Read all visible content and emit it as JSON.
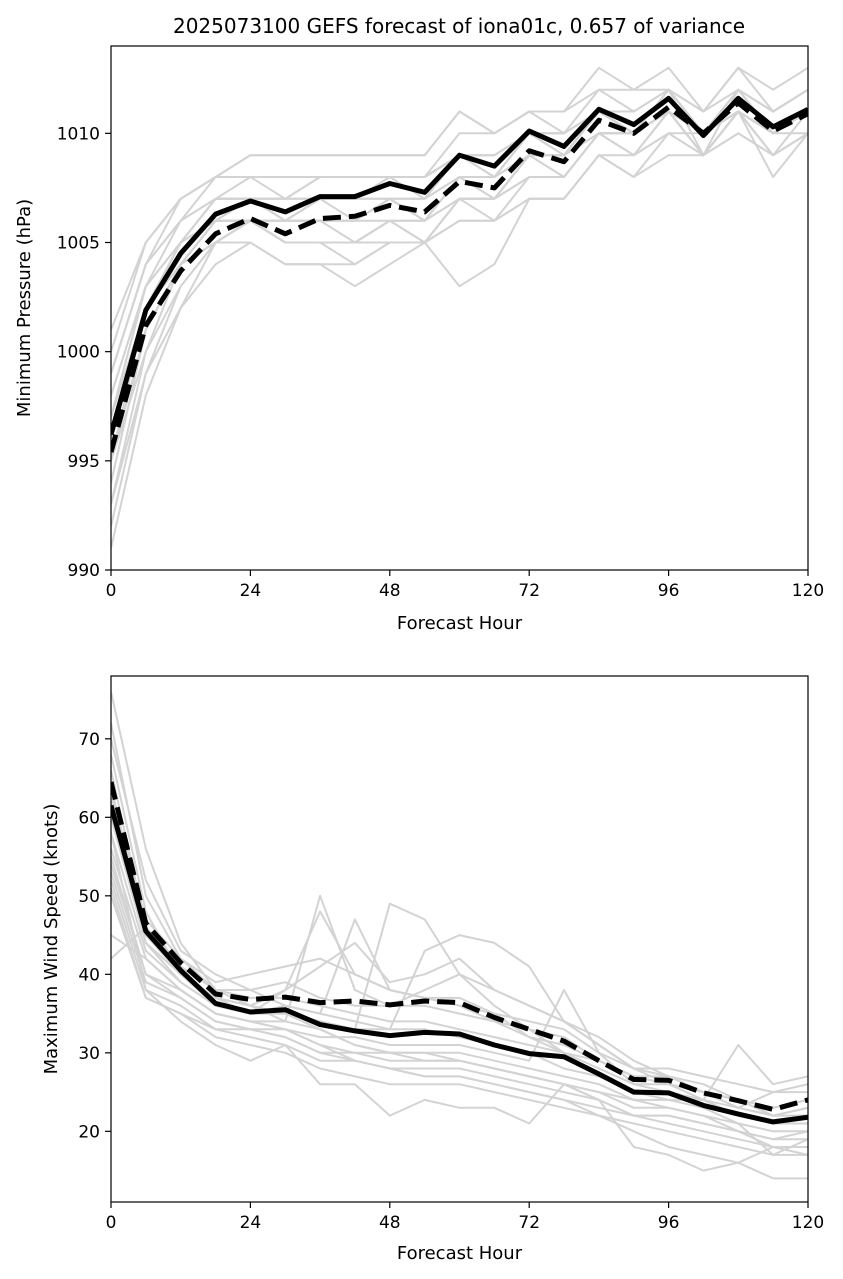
{
  "title": "2025073100 GEFS forecast of iona01c, 0.657 of variance",
  "colors": {
    "ensemble": "#d3d3d3",
    "mean": "#000000",
    "axes": "#000000"
  },
  "chart_data": [
    {
      "type": "line",
      "title": "2025073100 GEFS forecast of iona01c, 0.657 of variance",
      "xlabel": "Forecast Hour",
      "ylabel": "Minimum Pressure (hPa)",
      "xlim": [
        0,
        120
      ],
      "ylim": [
        990,
        1014
      ],
      "xticks": [
        0,
        24,
        48,
        72,
        96,
        120
      ],
      "yticks": [
        990,
        995,
        1000,
        1005,
        1010
      ],
      "x": [
        0,
        6,
        12,
        18,
        24,
        30,
        36,
        42,
        48,
        54,
        60,
        66,
        72,
        78,
        84,
        90,
        96,
        102,
        108,
        114,
        120
      ],
      "mean_solid": [
        996.2,
        1001.9,
        1004.5,
        1006.3,
        1006.9,
        1006.4,
        1007.1,
        1007.1,
        1007.7,
        1007.3,
        1009.0,
        1008.5,
        1010.1,
        1009.4,
        1011.1,
        1010.4,
        1011.6,
        1009.9,
        1011.6,
        1010.3,
        1011.1
      ],
      "mean_dashed": [
        995.4,
        1001.2,
        1003.7,
        1005.4,
        1006.1,
        1005.4,
        1006.1,
        1006.2,
        1006.7,
        1006.4,
        1007.8,
        1007.5,
        1009.2,
        1008.7,
        1010.6,
        1010.0,
        1011.2,
        1010.0,
        1011.4,
        1010.1,
        1010.9
      ],
      "ensemble": [
        [
          997,
          1003,
          1006,
          1008,
          1009,
          1009,
          1009,
          1009,
          1009,
          1009,
          1011,
          1010,
          1011,
          1011,
          1013,
          1012,
          1012,
          1011,
          1013,
          1012,
          1013
        ],
        [
          995,
          1002,
          1005,
          1007,
          1008,
          1008,
          1008,
          1008,
          1008,
          1008,
          1010,
          1010,
          1011,
          1010,
          1012,
          1011,
          1012,
          1010,
          1012,
          1011,
          1012
        ],
        [
          999,
          1004,
          1006,
          1007,
          1007,
          1007,
          1008,
          1008,
          1008,
          1008,
          1009,
          1009,
          1010,
          1010,
          1011,
          1011,
          1012,
          1010,
          1012,
          1010,
          1011
        ],
        [
          993,
          1000,
          1004,
          1006,
          1007,
          1006,
          1007,
          1007,
          1008,
          1007,
          1009,
          1008,
          1010,
          1009,
          1011,
          1010,
          1012,
          1009,
          1012,
          1010,
          1011
        ],
        [
          996,
          1002,
          1004,
          1006,
          1006,
          1006,
          1007,
          1007,
          1007,
          1007,
          1008,
          1008,
          1009,
          1009,
          1011,
          1010,
          1011,
          1010,
          1011,
          1010,
          1011
        ],
        [
          1000,
          1005,
          1007,
          1008,
          1008,
          1007,
          1007,
          1006,
          1007,
          1006,
          1008,
          1007,
          1009,
          1008,
          1010,
          1010,
          1011,
          1009,
          1011,
          1009,
          1010
        ],
        [
          991,
          998,
          1002,
          1005,
          1006,
          1006,
          1006,
          1006,
          1007,
          1006,
          1008,
          1008,
          1009,
          1009,
          1010,
          1009,
          1011,
          1009,
          1011,
          1010,
          1010
        ],
        [
          998,
          1003,
          1005,
          1007,
          1007,
          1007,
          1007,
          1007,
          1008,
          1008,
          1009,
          1009,
          1010,
          1009,
          1011,
          1010,
          1011,
          1010,
          1011,
          1009,
          1011
        ],
        [
          994,
          1001,
          1004,
          1005,
          1006,
          1005,
          1005,
          1005,
          1006,
          1005,
          1007,
          1007,
          1008,
          1008,
          1010,
          1010,
          1011,
          1009,
          1011,
          1010,
          1011
        ],
        [
          997,
          1002,
          1005,
          1006,
          1007,
          1006,
          1007,
          1007,
          1007,
          1007,
          1008,
          1008,
          1010,
          1009,
          1011,
          1010,
          1011,
          1010,
          1012,
          1011,
          1012
        ],
        [
          1001,
          1005,
          1007,
          1008,
          1008,
          1008,
          1008,
          1008,
          1008,
          1008,
          1009,
          1009,
          1010,
          1010,
          1011,
          1011,
          1012,
          1011,
          1012,
          1010,
          1011
        ],
        [
          995,
          1000,
          1003,
          1005,
          1006,
          1006,
          1006,
          1006,
          1006,
          1006,
          1008,
          1007,
          1009,
          1009,
          1010,
          1010,
          1011,
          1010,
          1011,
          1010,
          1011
        ],
        [
          999,
          1004,
          1006,
          1007,
          1007,
          1006,
          1006,
          1005,
          1005,
          1005,
          1007,
          1007,
          1009,
          1009,
          1011,
          1010,
          1011,
          1010,
          1011,
          1010,
          1011
        ],
        [
          996,
          1002,
          1005,
          1006,
          1006,
          1005,
          1005,
          1004,
          1005,
          1005,
          1006,
          1006,
          1008,
          1008,
          1010,
          1009,
          1011,
          1009,
          1011,
          1010,
          1011
        ],
        [
          998,
          1003,
          1005,
          1007,
          1007,
          1007,
          1008,
          1008,
          1008,
          1008,
          1009,
          1008,
          1010,
          1010,
          1011,
          1010,
          1012,
          1010,
          1012,
          1011,
          1012
        ],
        [
          994,
          1001,
          1004,
          1006,
          1006,
          1006,
          1006,
          1006,
          1007,
          1006,
          1007,
          1007,
          1009,
          1008,
          1010,
          1010,
          1011,
          1009,
          1011,
          1010,
          1011
        ],
        [
          997,
          1003,
          1005,
          1006,
          1006,
          1005,
          1005,
          1005,
          1006,
          1006,
          1007,
          1007,
          1008,
          1008,
          1010,
          1009,
          1010,
          1009,
          1011,
          1009,
          1010
        ],
        [
          993,
          999,
          1003,
          1005,
          1005,
          1004,
          1004,
          1004,
          1005,
          1005,
          1006,
          1006,
          1007,
          1007,
          1009,
          1008,
          1009,
          1009,
          1010,
          1009,
          1010
        ],
        [
          995,
          1001,
          1004,
          1005,
          1006,
          1005,
          1005,
          1005,
          1006,
          1005,
          1007,
          1006,
          1007,
          1007,
          1009,
          1009,
          1010,
          1009,
          1010,
          1009,
          1010
        ],
        [
          992,
          999,
          1002,
          1004,
          1005,
          1004,
          1004,
          1003,
          1004,
          1005,
          1003,
          1004,
          1007,
          1007,
          1009,
          1008,
          1010,
          1010,
          1011,
          1008,
          1010
        ],
        [
          999,
          1004,
          1007,
          1008,
          1009,
          1009,
          1009,
          1009,
          1009,
          1009,
          1011,
          1010,
          1011,
          1011,
          1012,
          1012,
          1013,
          1011,
          1013,
          1011,
          1012
        ]
      ]
    },
    {
      "type": "line",
      "title": "",
      "xlabel": "Forecast Hour",
      "ylabel": "Maximum Wind Speed (knots)",
      "xlim": [
        0,
        120
      ],
      "ylim": [
        11,
        78
      ],
      "xticks": [
        0,
        24,
        48,
        72,
        96,
        120
      ],
      "yticks": [
        20,
        30,
        40,
        50,
        60,
        70
      ],
      "x": [
        0,
        6,
        12,
        18,
        24,
        30,
        36,
        42,
        48,
        54,
        60,
        66,
        72,
        78,
        84,
        90,
        96,
        102,
        108,
        114,
        120
      ],
      "mean_solid": [
        61.5,
        45.5,
        40.5,
        36.3,
        35.2,
        35.5,
        33.6,
        32.8,
        32.2,
        32.6,
        32.4,
        31.0,
        29.9,
        29.5,
        27.3,
        25.0,
        24.9,
        23.3,
        22.2,
        21.2,
        21.8
      ],
      "mean_dashed": [
        64.5,
        46.5,
        41.5,
        37.5,
        36.8,
        37.1,
        36.4,
        36.6,
        36.1,
        36.6,
        36.4,
        34.5,
        33.0,
        31.5,
        29.0,
        26.6,
        26.5,
        24.9,
        23.9,
        22.8,
        24.0
      ],
      "ensemble": [
        [
          76,
          56,
          44,
          38,
          36,
          34,
          33,
          31,
          30,
          30,
          29,
          28,
          27,
          26,
          24,
          22,
          22,
          21,
          20,
          18,
          18
        ],
        [
          72,
          50,
          42,
          39,
          40,
          41,
          42,
          40,
          38,
          37,
          37,
          35,
          34,
          33,
          30,
          28,
          28,
          27,
          26,
          25,
          25
        ],
        [
          68,
          48,
          40,
          37,
          36,
          38,
          41,
          44,
          39,
          40,
          42,
          38,
          36,
          34,
          32,
          29,
          27,
          25,
          24,
          22,
          23
        ],
        [
          66,
          46,
          41,
          38,
          38,
          39,
          37,
          36,
          36,
          38,
          40,
          38,
          36,
          34,
          31,
          28,
          27,
          25,
          24,
          23,
          24
        ],
        [
          64,
          45,
          40,
          36,
          35,
          38,
          48,
          40,
          38,
          37,
          36,
          34,
          33,
          32,
          29,
          27,
          26,
          25,
          24,
          22,
          23
        ],
        [
          62,
          44,
          40,
          37,
          35,
          36,
          35,
          47,
          38,
          37,
          36,
          35,
          32,
          31,
          29,
          27,
          27,
          26,
          24,
          23,
          24
        ],
        [
          60,
          44,
          39,
          36,
          35,
          35,
          34,
          33,
          49,
          47,
          40,
          36,
          33,
          30,
          29,
          27,
          26,
          25,
          23,
          22,
          22
        ],
        [
          58,
          43,
          39,
          36,
          35,
          35,
          34,
          33,
          33,
          43,
          45,
          44,
          41,
          34,
          31,
          28,
          26,
          25,
          23,
          22,
          22
        ],
        [
          56,
          42,
          38,
          35,
          34,
          34,
          50,
          38,
          36,
          36,
          35,
          34,
          32,
          30,
          27,
          25,
          25,
          24,
          22,
          21,
          21
        ],
        [
          55,
          40,
          38,
          35,
          34,
          33,
          32,
          32,
          31,
          31,
          31,
          30,
          29,
          38,
          30,
          26,
          26,
          24,
          22,
          21,
          21
        ],
        [
          54,
          40,
          37,
          34,
          33,
          33,
          31,
          30,
          30,
          30,
          30,
          29,
          28,
          27,
          26,
          24,
          24,
          23,
          21,
          20,
          20
        ],
        [
          53,
          39,
          37,
          34,
          33,
          32,
          30,
          30,
          29,
          29,
          29,
          28,
          27,
          26,
          25,
          23,
          23,
          22,
          20,
          19,
          20
        ],
        [
          52,
          38,
          36,
          33,
          33,
          32,
          30,
          29,
          28,
          28,
          28,
          27,
          26,
          25,
          24,
          22,
          22,
          21,
          20,
          19,
          19
        ],
        [
          51,
          37,
          35,
          33,
          32,
          31,
          29,
          29,
          28,
          27,
          27,
          26,
          25,
          24,
          23,
          22,
          21,
          20,
          19,
          18,
          18
        ],
        [
          50,
          37,
          35,
          32,
          31,
          30,
          28,
          27,
          26,
          26,
          26,
          25,
          24,
          23,
          22,
          21,
          20,
          19,
          18,
          17,
          17
        ],
        [
          45,
          42,
          38,
          35,
          34,
          33,
          31,
          29,
          28,
          27,
          27,
          26,
          25,
          24,
          22,
          20,
          18,
          17,
          16,
          14,
          14
        ],
        [
          42,
          46,
          40,
          37,
          36,
          35,
          33,
          31,
          30,
          29,
          29,
          28,
          27,
          26,
          24,
          18,
          17,
          15,
          16,
          18,
          17
        ],
        [
          58,
          38,
          34,
          31,
          29,
          31,
          26,
          26,
          22,
          24,
          23,
          23,
          21,
          26,
          25,
          24,
          23,
          22,
          21,
          17,
          19
        ],
        [
          70,
          52,
          43,
          40,
          38,
          36,
          35,
          34,
          33,
          33,
          32,
          31,
          30,
          28,
          27,
          25,
          24,
          24,
          31,
          26,
          27
        ],
        [
          63,
          47,
          42,
          38,
          37,
          37,
          36,
          35,
          34,
          34,
          33,
          32,
          31,
          30,
          28,
          26,
          25,
          24,
          23,
          25,
          26
        ]
      ]
    }
  ]
}
